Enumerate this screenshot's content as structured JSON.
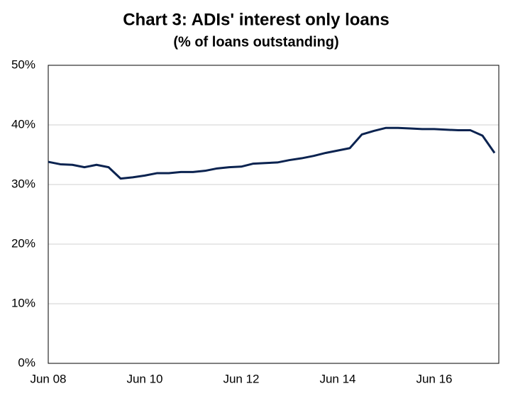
{
  "chart_data": {
    "type": "line",
    "title": "Chart 3: ADIs' interest only loans",
    "subtitle": "(% of loans outstanding)",
    "categories": [
      "Jun 08",
      null,
      null,
      null,
      null,
      null,
      null,
      null,
      "Jun 10",
      null,
      null,
      null,
      null,
      null,
      null,
      null,
      "Jun 12",
      null,
      null,
      null,
      null,
      null,
      null,
      null,
      "Jun 14",
      null,
      null,
      null,
      null,
      null,
      null,
      null,
      "Jun 16",
      null,
      null,
      null,
      null,
      null
    ],
    "values": [
      33.8,
      33.4,
      33.3,
      32.9,
      33.3,
      32.9,
      31.0,
      31.2,
      31.5,
      31.9,
      31.9,
      32.1,
      32.1,
      32.3,
      32.7,
      32.9,
      33.0,
      33.5,
      33.6,
      33.7,
      34.1,
      34.4,
      34.8,
      35.3,
      35.7,
      36.1,
      38.4,
      39.0,
      39.5,
      39.5,
      39.4,
      39.3,
      39.3,
      39.2,
      39.1,
      39.1,
      38.2,
      35.3
    ],
    "color": "#0b2350",
    "ylim": [
      0,
      50
    ],
    "yticks": [
      {
        "value": 0,
        "label": "0%"
      },
      {
        "value": 10,
        "label": "10%"
      },
      {
        "value": 20,
        "label": "20%"
      },
      {
        "value": 30,
        "label": "30%"
      },
      {
        "value": 40,
        "label": "40%"
      },
      {
        "value": 50,
        "label": "50%"
      }
    ],
    "grid": true
  }
}
